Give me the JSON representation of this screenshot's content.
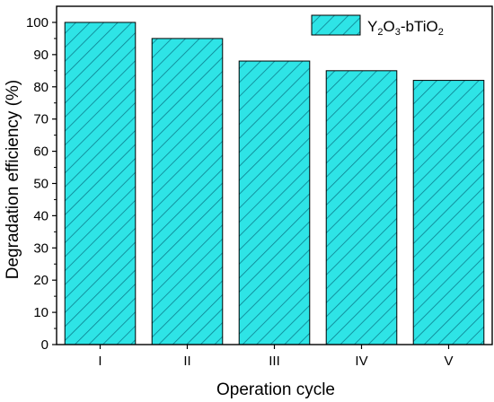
{
  "chart_data": {
    "type": "bar",
    "xlabel": "Operation cycle",
    "ylabel": "Degradation efficiency (%)",
    "categories": [
      "I",
      "II",
      "III",
      "IV",
      "V"
    ],
    "series": [
      {
        "name": "Y2O3-bTiO2",
        "values": [
          100,
          95,
          88,
          85,
          82
        ]
      }
    ],
    "ylim": [
      0,
      105
    ],
    "yticks": [
      0,
      10,
      20,
      30,
      40,
      50,
      60,
      70,
      80,
      90,
      100
    ],
    "grid": false,
    "legend_position": "top-right",
    "legend": {
      "y_main": "Y",
      "y_sub": "2",
      "o_main": "O",
      "o_sub": "3",
      "tail_main": "-bTiO",
      "tail_sub": "2"
    },
    "colors": {
      "bar_fill": "#2ee4e6",
      "hatch": "#0b7f8f",
      "bar_edge": "#000000",
      "axis": "#000000"
    },
    "hatch_pattern": "diagonal"
  }
}
